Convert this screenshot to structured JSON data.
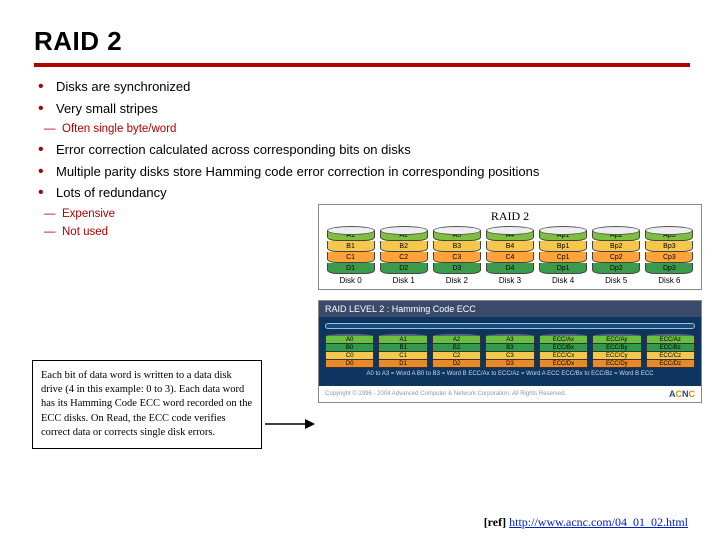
{
  "title": "RAID 2",
  "bullets": {
    "b1": "Disks are synchronized",
    "b2": "Very small stripes",
    "s2a": "Often single byte/word",
    "b3": "Error correction calculated across corresponding bits on disks",
    "b4": "Multiple parity disks store Hamming code error correction in corresponding positions",
    "b5": "Lots of redundancy",
    "s5a": "Expensive",
    "s5b": "Not used"
  },
  "note": "Each bit of data word is written to a data disk drive (4 in this example: 0 to 3). Each data word has its Hamming Code ECC word recorded on the ECC disks. On Read, the ECC code verifies correct data or corrects single disk errors.",
  "ref_label": "[ref] ",
  "ref_url": "http://www.acnc.com/04_01_02.html",
  "raid2_fig": {
    "caption": "RAID 2",
    "band_colors": {
      "A": "#7fbf3f",
      "B": "#f5c84b",
      "C": "#ffa33a",
      "D": "#3a9b4b"
    },
    "disks": [
      {
        "label": "Disk 0",
        "cells": [
          "A1",
          "B1",
          "C1",
          "D1"
        ]
      },
      {
        "label": "Disk 1",
        "cells": [
          "A2",
          "B2",
          "C2",
          "D2"
        ]
      },
      {
        "label": "Disk 2",
        "cells": [
          "A3",
          "B3",
          "C3",
          "D3"
        ]
      },
      {
        "label": "Disk 3",
        "cells": [
          "A4",
          "B4",
          "C4",
          "D4"
        ]
      },
      {
        "label": "Disk 4",
        "cells": [
          "Ap1",
          "Bp1",
          "Cp1",
          "Dp1"
        ]
      },
      {
        "label": "Disk 5",
        "cells": [
          "Ap2",
          "Bp2",
          "Cp2",
          "Dp2"
        ]
      },
      {
        "label": "Disk 6",
        "cells": [
          "Ap3",
          "Bp3",
          "Cp3",
          "Dp3"
        ]
      }
    ]
  },
  "lower_fig": {
    "header": "RAID LEVEL 2 : Hamming Code ECC",
    "band_colors": [
      "#6bbf3f",
      "#2f9b4b",
      "#f5c84b",
      "#e88a2a"
    ],
    "disks": [
      {
        "cells": [
          "A0",
          "B0",
          "C0",
          "D0"
        ]
      },
      {
        "cells": [
          "A1",
          "B1",
          "C1",
          "D1"
        ]
      },
      {
        "cells": [
          "A2",
          "B2",
          "C2",
          "D2"
        ]
      },
      {
        "cells": [
          "A3",
          "B3",
          "C3",
          "D3"
        ]
      },
      {
        "cells": [
          "ECC/Ax",
          "ECC/Bx",
          "ECC/Cx",
          "ECC/Dx"
        ]
      },
      {
        "cells": [
          "ECC/Ay",
          "ECC/By",
          "ECC/Cy",
          "ECC/Dy"
        ]
      },
      {
        "cells": [
          "ECC/Az",
          "ECC/Bz",
          "ECC/Cz",
          "ECC/Dz"
        ]
      }
    ],
    "note": "A0 to A3 = Word A   B0 to B3 = Word B    ECC/Ax to ECC/Az = Word A ECC    ECC/Bx to ECC/Bz = Word B ECC",
    "copyright": "Copyright © 1996 - 2004 Advanced Computer & Network Corporation. All Rights Reserved.",
    "logo": "ACNC"
  }
}
